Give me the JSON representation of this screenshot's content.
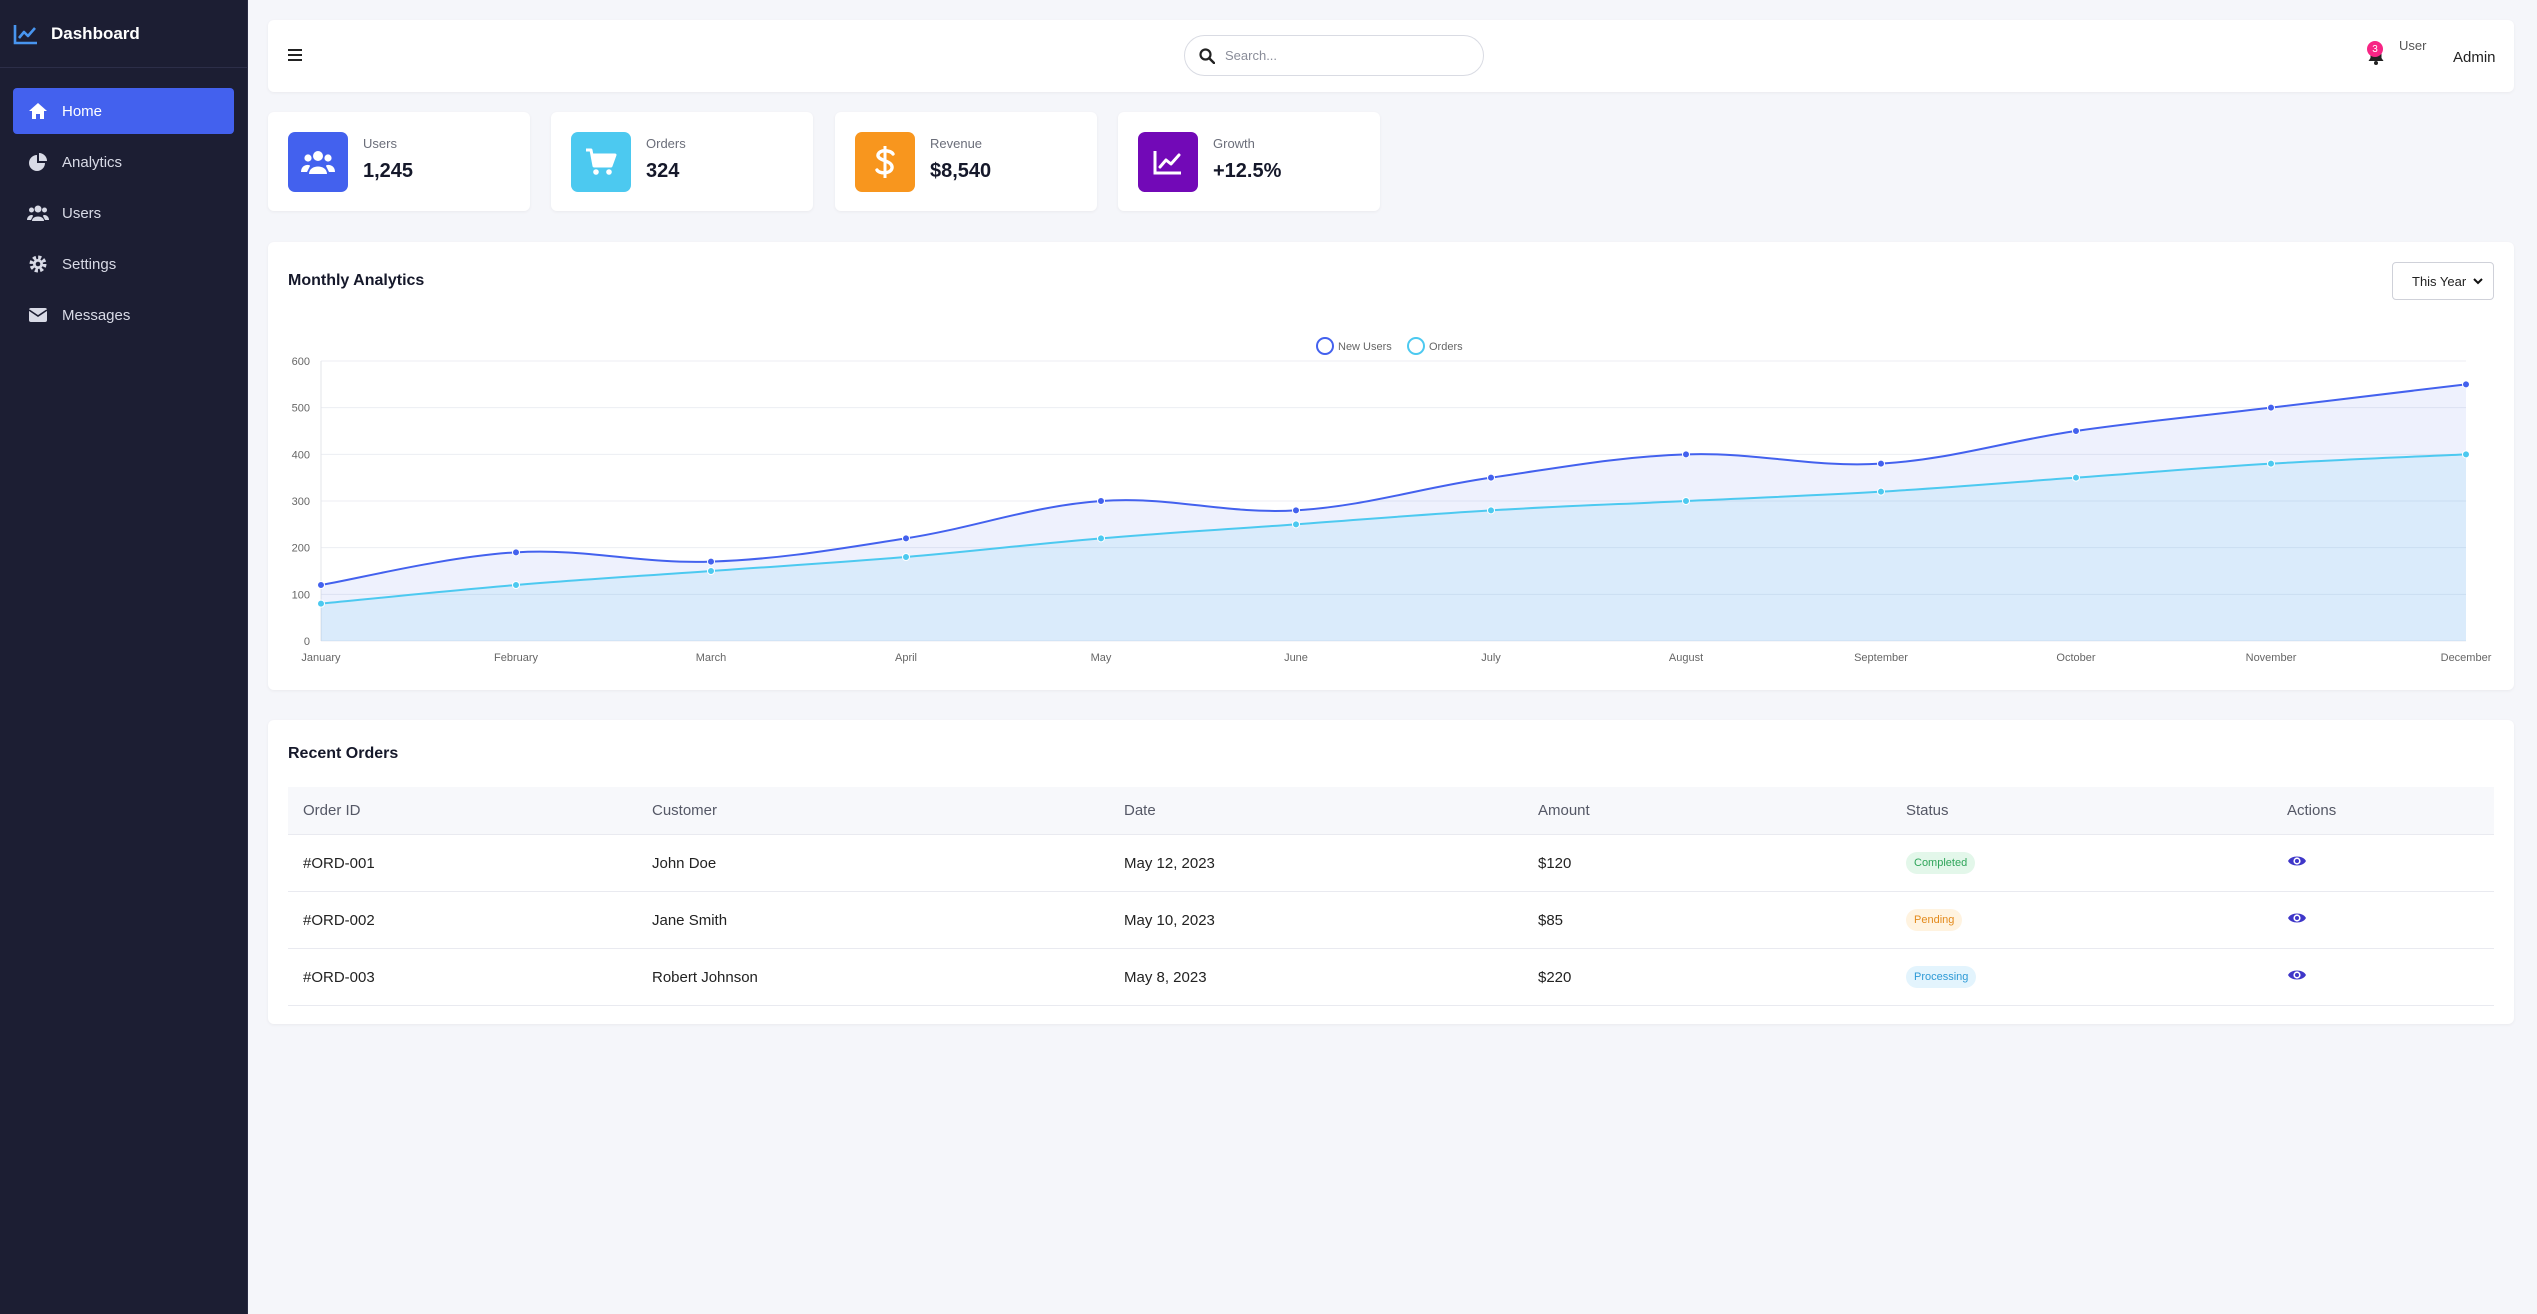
{
  "brand": {
    "title": "Dashboard"
  },
  "sidebar": {
    "items": [
      {
        "label": "Home",
        "icon": "home-icon",
        "active": true
      },
      {
        "label": "Analytics",
        "icon": "pie-chart-icon"
      },
      {
        "label": "Users",
        "icon": "users-icon"
      },
      {
        "label": "Settings",
        "icon": "gear-icon"
      },
      {
        "label": "Messages",
        "icon": "envelope-icon"
      }
    ]
  },
  "header": {
    "search_placeholder": "Search...",
    "notification_count": "3",
    "avatar_alt": "User",
    "user_name": "Admin"
  },
  "stats": [
    {
      "label": "Users",
      "value": "1,245",
      "color": "#4361ee",
      "icon": "users-icon"
    },
    {
      "label": "Orders",
      "value": "324",
      "color": "#4cc9f0",
      "icon": "cart-icon"
    },
    {
      "label": "Revenue",
      "value": "$8,540",
      "color": "#f8961e",
      "icon": "dollar-icon"
    },
    {
      "label": "Growth",
      "value": "+12.5%",
      "color": "#7209b7",
      "icon": "chart-line-icon"
    }
  ],
  "analytics": {
    "title": "Monthly Analytics",
    "period_select": "This Year"
  },
  "chart_data": {
    "type": "line",
    "categories": [
      "January",
      "February",
      "March",
      "April",
      "May",
      "June",
      "July",
      "August",
      "September",
      "October",
      "November",
      "December"
    ],
    "series": [
      {
        "name": "New Users",
        "values": [
          120,
          190,
          170,
          220,
          300,
          280,
          350,
          400,
          380,
          450,
          500,
          550
        ],
        "color": "#4361ee"
      },
      {
        "name": "Orders",
        "values": [
          80,
          120,
          150,
          180,
          220,
          250,
          280,
          300,
          320,
          350,
          380,
          400
        ],
        "color": "#4cc9f0"
      }
    ],
    "ylim": [
      0,
      600
    ],
    "yticks": [
      0,
      100,
      200,
      300,
      400,
      500,
      600
    ],
    "legend": "top-center",
    "grid": true
  },
  "orders": {
    "title": "Recent Orders",
    "columns": [
      "Order ID",
      "Customer",
      "Date",
      "Amount",
      "Status",
      "Actions"
    ],
    "rows": [
      {
        "id": "#ORD-001",
        "customer": "John Doe",
        "date": "May 12, 2023",
        "amount": "$120",
        "status": "Completed"
      },
      {
        "id": "#ORD-002",
        "customer": "Jane Smith",
        "date": "May 10, 2023",
        "amount": "$85",
        "status": "Pending"
      },
      {
        "id": "#ORD-003",
        "customer": "Robert Johnson",
        "date": "May 8, 2023",
        "amount": "$220",
        "status": "Processing"
      }
    ]
  }
}
